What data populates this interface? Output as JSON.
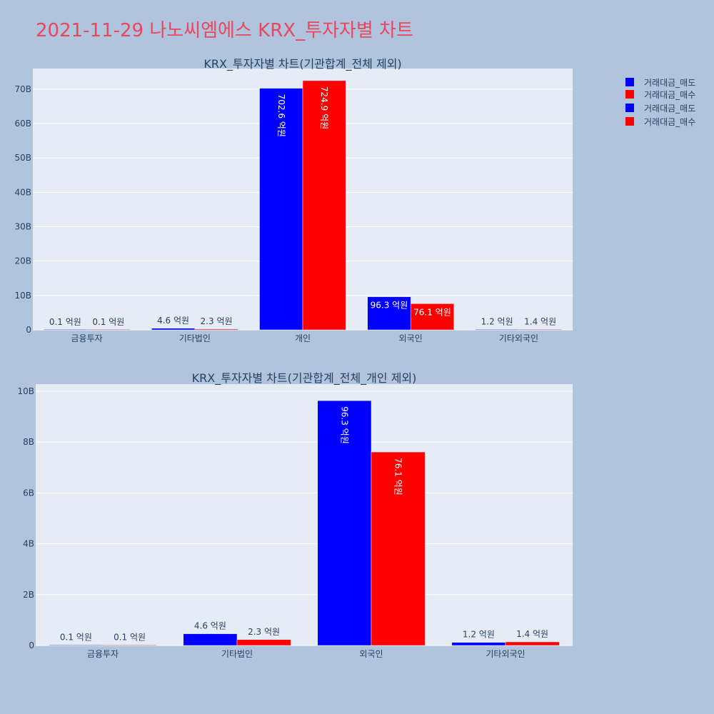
{
  "page_title": "2021-11-29 나노씨엠에스 KRX_투자자별 차트",
  "legend": [
    {
      "name": "거래대금_매도",
      "color": "#0000ff"
    },
    {
      "name": "거래대금_매수",
      "color": "#ff0000"
    },
    {
      "name": "거래대금_매도",
      "color": "#0000ff"
    },
    {
      "name": "거래대금_매수",
      "color": "#ff0000"
    }
  ],
  "colors": {
    "plot_bg": "#e5ecf6",
    "paper_bg": "#b0c4de",
    "grid": "#ffffff",
    "text": "#2a3f5f"
  },
  "chart_data": [
    {
      "type": "bar",
      "title": "KRX_투자자별 차트(기관합계_전체 제외)",
      "categories": [
        "금융투자",
        "기타법인",
        "개인",
        "외국인",
        "기타외국인"
      ],
      "ylim": [
        0,
        76000000000
      ],
      "yticks": [
        0,
        10000000000,
        20000000000,
        30000000000,
        40000000000,
        50000000000,
        60000000000,
        70000000000
      ],
      "ytick_labels": [
        "0",
        "10B",
        "20B",
        "30B",
        "40B",
        "50B",
        "60B",
        "70B"
      ],
      "series": [
        {
          "name": "거래대금_매도",
          "color": "#0000ff",
          "values": [
            10000000,
            460000000,
            70260000000,
            9630000000,
            120000000
          ],
          "labels": [
            "0.1 억원",
            "4.6 억원",
            "702.6 억원",
            "96.3 억원",
            "1.2 억원"
          ]
        },
        {
          "name": "거래대금_매수",
          "color": "#ff0000",
          "values": [
            10000000,
            230000000,
            72490000000,
            7610000000,
            140000000
          ],
          "labels": [
            "0.1 억원",
            "2.3 억원",
            "724.9 억원",
            "76.1 억원",
            "1.4 억원"
          ]
        }
      ]
    },
    {
      "type": "bar",
      "title": "KRX_투자자별 차트(기관합계_전체_개인 제외)",
      "categories": [
        "금융투자",
        "기타법인",
        "외국인",
        "기타외국인"
      ],
      "ylim": [
        0,
        10280000000
      ],
      "yticks": [
        0,
        2000000000,
        4000000000,
        6000000000,
        8000000000,
        10000000000
      ],
      "ytick_labels": [
        "0",
        "2B",
        "4B",
        "6B",
        "8B",
        "10B"
      ],
      "series": [
        {
          "name": "거래대금_매도",
          "color": "#0000ff",
          "values": [
            10000000,
            460000000,
            9630000000,
            120000000
          ],
          "labels": [
            "0.1 억원",
            "4.6 억원",
            "96.3 억원",
            "1.2 억원"
          ]
        },
        {
          "name": "거래대금_매수",
          "color": "#ff0000",
          "values": [
            10000000,
            230000000,
            7610000000,
            140000000
          ],
          "labels": [
            "0.1 억원",
            "2.3 억원",
            "76.1 억원",
            "1.4 억원"
          ]
        }
      ]
    }
  ]
}
